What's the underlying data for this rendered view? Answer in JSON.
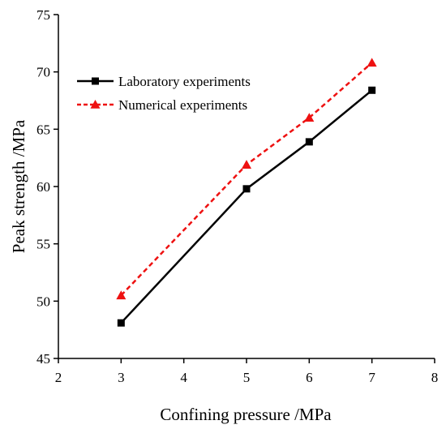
{
  "chart_data": {
    "type": "line",
    "xlabel": "Confining pressure /MPa",
    "ylabel": "Peak strength /MPa",
    "xlim": [
      2,
      8
    ],
    "ylim": [
      45,
      75
    ],
    "xticks": [
      "2",
      "3",
      "4",
      "5",
      "6",
      "7",
      "8"
    ],
    "yticks": [
      "45",
      "50",
      "55",
      "60",
      "65",
      "70",
      "75"
    ],
    "grid": false,
    "legend_position": "top-left",
    "series": [
      {
        "name": "Laboratory experiments",
        "color": "#000000",
        "line_style": "solid",
        "marker": "square",
        "x": [
          3,
          5,
          6,
          7
        ],
        "y": [
          48.1,
          59.8,
          63.9,
          68.4
        ]
      },
      {
        "name": "Numerical  experiments",
        "color": "#ee1111",
        "line_style": "dashed",
        "marker": "triangle",
        "x": [
          3,
          5,
          6,
          7
        ],
        "y": [
          50.5,
          61.9,
          66.0,
          70.8
        ]
      }
    ]
  }
}
